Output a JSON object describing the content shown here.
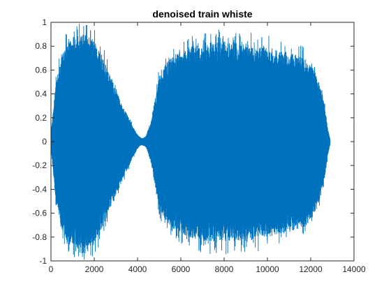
{
  "chart_data": {
    "type": "line",
    "title": "denoised train whiste",
    "xlabel": "",
    "ylabel": "",
    "xlim": [
      0,
      14000
    ],
    "ylim": [
      -1,
      1
    ],
    "xticks": [
      0,
      2000,
      4000,
      6000,
      8000,
      10000,
      12000,
      14000
    ],
    "xtick_labels": [
      "0",
      "2000",
      "4000",
      "6000",
      "8000",
      "10000",
      "12000",
      "14000"
    ],
    "yticks": [
      -1,
      -0.8,
      -0.6,
      -0.4,
      -0.2,
      0,
      0.2,
      0.4,
      0.6,
      0.8,
      1
    ],
    "ytick_labels": [
      "-1",
      "-0.8",
      "-0.6",
      "-0.4",
      "-0.2",
      "0",
      "0.2",
      "0.4",
      "0.6",
      "0.8",
      "1"
    ],
    "grid": false,
    "legend": "none",
    "series_color": "#0072BD",
    "envelope": {
      "x": [
        0,
        200,
        500,
        800,
        1000,
        1300,
        1600,
        2000,
        2300,
        2600,
        3000,
        3300,
        3600,
        3800,
        4000,
        4100,
        4200,
        4300,
        4400,
        4600,
        4800,
        5000,
        5300,
        5600,
        6000,
        6500,
        7000,
        7500,
        8000,
        8500,
        9000,
        9500,
        10000,
        10500,
        11000,
        11500,
        12000,
        12300,
        12600,
        12800,
        12900
      ],
      "upper": [
        0.05,
        0.45,
        0.75,
        0.86,
        0.88,
        0.9,
        0.9,
        0.85,
        0.75,
        0.62,
        0.45,
        0.3,
        0.2,
        0.12,
        0.06,
        0.04,
        0.03,
        0.035,
        0.05,
        0.15,
        0.35,
        0.55,
        0.65,
        0.72,
        0.76,
        0.8,
        0.82,
        0.83,
        0.84,
        0.83,
        0.82,
        0.8,
        0.79,
        0.77,
        0.75,
        0.72,
        0.66,
        0.55,
        0.35,
        0.1,
        0.02
      ],
      "lower": [
        -0.05,
        -0.45,
        -0.75,
        -0.86,
        -0.88,
        -0.9,
        -0.9,
        -0.86,
        -0.76,
        -0.63,
        -0.46,
        -0.32,
        -0.21,
        -0.13,
        -0.06,
        -0.04,
        -0.03,
        -0.035,
        -0.05,
        -0.16,
        -0.36,
        -0.56,
        -0.66,
        -0.73,
        -0.77,
        -0.81,
        -0.83,
        -0.84,
        -0.84,
        -0.84,
        -0.83,
        -0.81,
        -0.8,
        -0.78,
        -0.76,
        -0.73,
        -0.67,
        -0.56,
        -0.36,
        -0.1,
        -0.02
      ]
    }
  }
}
